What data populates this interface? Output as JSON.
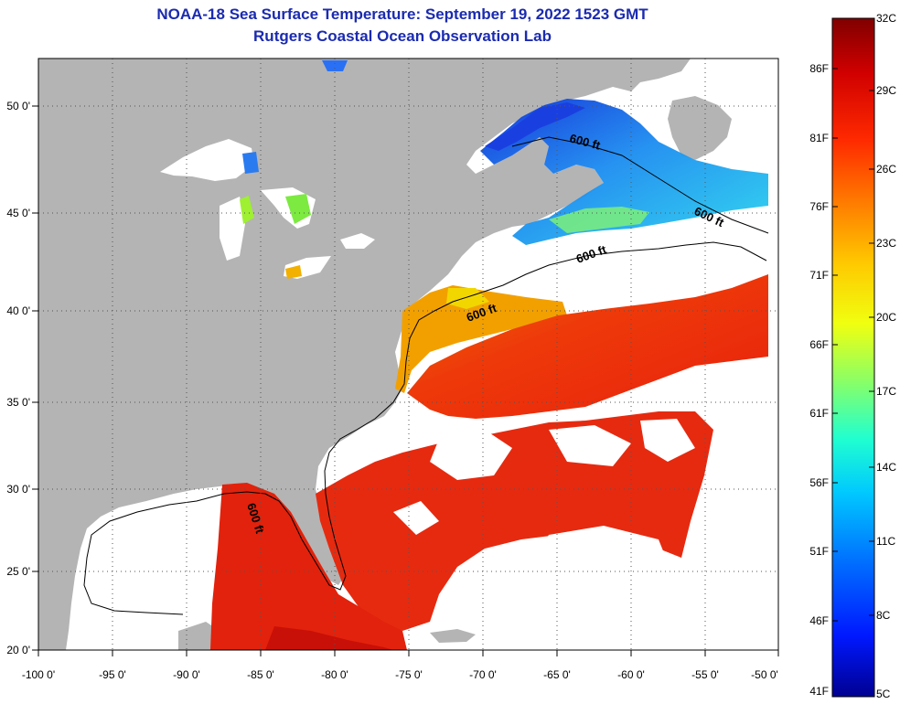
{
  "header": {
    "title": "NOAA-18 Sea Surface Temperature:  September 19, 2022 1523 GMT",
    "subtitle": "Rutgers Coastal Ocean Observation Lab"
  },
  "map": {
    "lon_range": [
      -100,
      -50
    ],
    "lat_range": [
      20,
      52.5
    ],
    "grid": "dotted",
    "x_ticks": [
      "-100 0'",
      "-95 0'",
      "-90 0'",
      "-85 0'",
      "-80 0'",
      "-75 0'",
      "-70 0'",
      "-65 0'",
      "-60 0'",
      "-55 0'",
      "-50 0'"
    ],
    "y_ticks": [
      "20 0'",
      "25 0'",
      "30 0'",
      "35 0'",
      "40 0'",
      "45 0'",
      "50 0'"
    ],
    "contour_label": "600 ft",
    "colors": {
      "land": "#b4b4b4",
      "no_data": "#ffffff"
    }
  },
  "colorbar": {
    "celsius_labels": [
      "32C",
      "29C",
      "26C",
      "23C",
      "20C",
      "17C",
      "14C",
      "11C",
      "8C",
      "5C"
    ],
    "fahrenheit_labels": [
      "86F",
      "81F",
      "76F",
      "71F",
      "66F",
      "61F",
      "56F",
      "51F",
      "46F",
      "41F"
    ],
    "colors": [
      "#800000",
      "#d00000",
      "#ff2a00",
      "#ff7a00",
      "#ffc800",
      "#f0ff10",
      "#90ff60",
      "#20ffd0",
      "#00c8ff",
      "#0070ff",
      "#0018ff",
      "#000090"
    ]
  }
}
